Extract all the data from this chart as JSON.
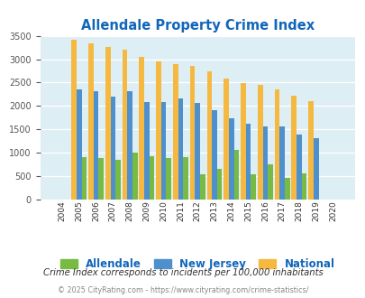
{
  "title": "Allendale Property Crime Index",
  "years": [
    "2004",
    "2005",
    "2006",
    "2007",
    "2008",
    "2009",
    "2010",
    "2011",
    "2012",
    "2013",
    "2014",
    "2015",
    "2016",
    "2017",
    "2018",
    "2019",
    "2020"
  ],
  "allendale": [
    0,
    910,
    880,
    850,
    1010,
    920,
    890,
    910,
    540,
    650,
    1060,
    550,
    750,
    460,
    570,
    0,
    0
  ],
  "new_jersey": [
    0,
    2360,
    2310,
    2200,
    2320,
    2080,
    2080,
    2160,
    2060,
    1910,
    1730,
    1620,
    1560,
    1560,
    1400,
    1310,
    0
  ],
  "national": [
    0,
    3420,
    3340,
    3270,
    3210,
    3040,
    2960,
    2900,
    2860,
    2740,
    2590,
    2490,
    2460,
    2360,
    2220,
    2110,
    0
  ],
  "allendale_color": "#77bb44",
  "nj_color": "#4d90cd",
  "national_color": "#f5b942",
  "bg_color": "#deeef5",
  "title_color": "#1166bb",
  "subtitle": "Crime Index corresponds to incidents per 100,000 inhabitants",
  "footer": "© 2025 CityRating.com - https://www.cityrating.com/crime-statistics/",
  "ylim": [
    0,
    3500
  ],
  "yticks": [
    0,
    500,
    1000,
    1500,
    2000,
    2500,
    3000,
    3500
  ]
}
